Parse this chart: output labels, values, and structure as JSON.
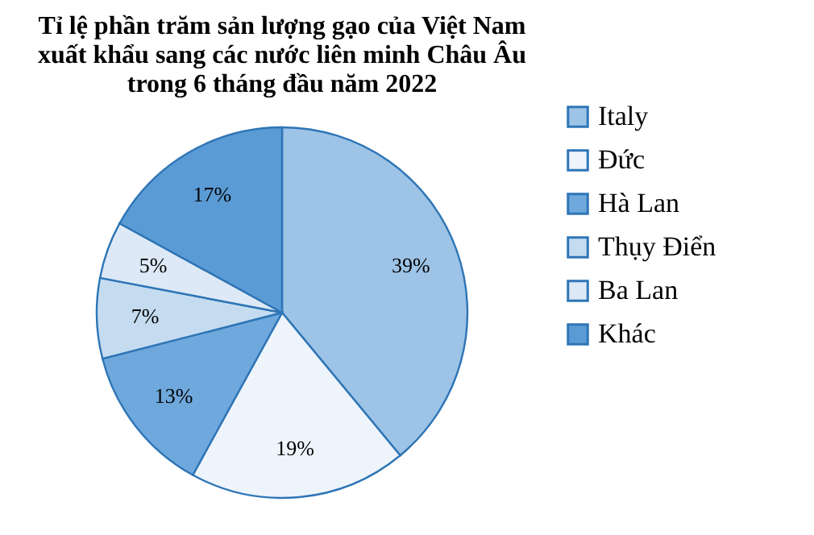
{
  "chart_data": {
    "type": "pie",
    "title": [
      "Tỉ lệ phần trăm sản lượng gạo của Việt Nam",
      "xuất khẩu sang các nước liên minh Châu Âu",
      "trong 6 tháng đầu năm 2022"
    ],
    "categories": [
      "Italy",
      "Đức",
      "Hà Lan",
      "Thụy Điển",
      "Ba Lan",
      "Khác"
    ],
    "values": [
      39,
      19,
      13,
      7,
      5,
      17
    ],
    "value_labels": [
      "39%",
      "19%",
      "13%",
      "7%",
      "5%",
      "17%"
    ],
    "colors": [
      "#9dc3e6",
      "#eef4fb",
      "#6fa8dc",
      "#c5dcf0",
      "#dde9f6",
      "#5b9bd5"
    ],
    "legend": "right"
  }
}
